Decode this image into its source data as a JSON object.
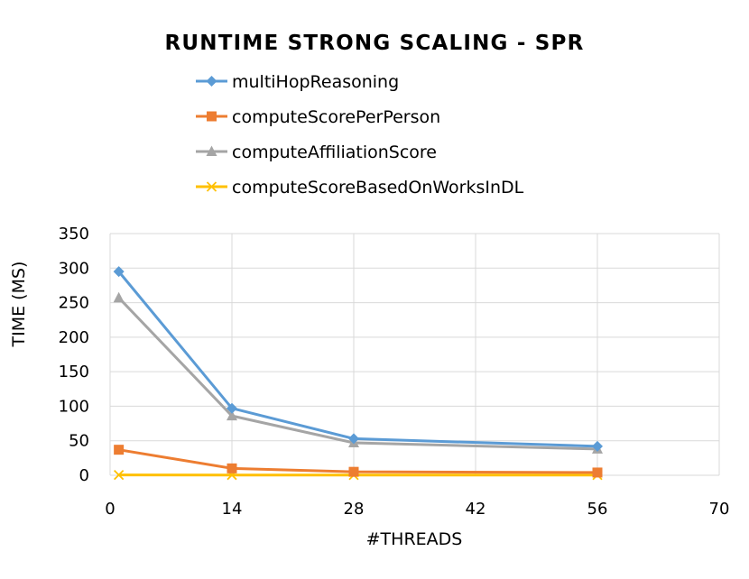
{
  "chart_data": {
    "type": "line",
    "title": "RUNTIME STRONG SCALING - SPR",
    "xlabel": "#THREADS",
    "ylabel": "TIME (MS)",
    "x": [
      1,
      14,
      28,
      56
    ],
    "xlim": [
      0,
      70
    ],
    "xticks": [
      0,
      14,
      28,
      42,
      56,
      70
    ],
    "ylim": [
      0,
      350
    ],
    "yticks": [
      0,
      50,
      100,
      150,
      200,
      250,
      300,
      350
    ],
    "grid": true,
    "legend_position": "top",
    "series": [
      {
        "name": "multiHopReasoning",
        "values": [
          295,
          97,
          53,
          42
        ],
        "color": "#5B9BD5",
        "marker": "diamond"
      },
      {
        "name": "computeScorePerPerson",
        "values": [
          37,
          10,
          5,
          4
        ],
        "color": "#ED7D31",
        "marker": "square"
      },
      {
        "name": "computeAffiliationScore",
        "values": [
          257,
          86,
          47,
          38
        ],
        "color": "#A5A5A5",
        "marker": "triangle"
      },
      {
        "name": "computeScoreBasedOnWorksInDL",
        "values": [
          0.5,
          0.4,
          0.3,
          0.3
        ],
        "color": "#FFC000",
        "marker": "x"
      }
    ]
  }
}
